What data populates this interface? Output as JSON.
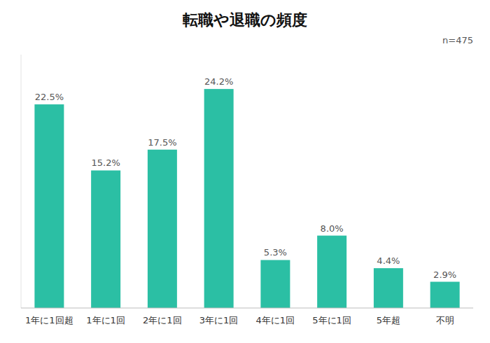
{
  "chart_data": {
    "type": "bar",
    "title": "転職や退職の頻度",
    "annotations": [
      "n=475"
    ],
    "categories": [
      "1年に1回超",
      "1年に1回",
      "2年に1回",
      "3年に1回",
      "4年に1回",
      "5年に1回",
      "5年超",
      "不明"
    ],
    "values": [
      22.5,
      15.2,
      17.5,
      24.2,
      5.3,
      8.0,
      4.4,
      2.9
    ],
    "value_labels": [
      "22.5%",
      "15.2%",
      "17.5%",
      "24.2%",
      "5.3%",
      "8.0%",
      "4.4%",
      "2.9%"
    ],
    "data_labels": true,
    "color": "#2bbfa4",
    "ylim": [
      0,
      28
    ],
    "tick_labels": "x",
    "grid": false
  }
}
